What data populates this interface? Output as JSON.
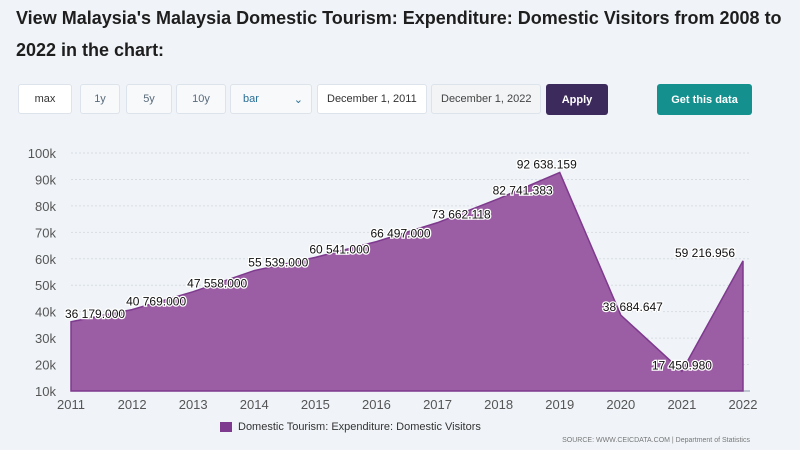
{
  "title": "View Malaysia's Malaysia Domestic Tourism: Expenditure: Domestic Visitors from 2008 to 2022 in the chart:",
  "controls": {
    "ranges": [
      "max",
      "1y",
      "5y",
      "10y"
    ],
    "chart_type": "bar",
    "start_date": "December 1, 2011",
    "end_date": "December 1, 2022",
    "apply_label": "Apply",
    "get_data_label": "Get this data"
  },
  "colors": {
    "series_fill": "#9b5da3",
    "series_line": "#7e3a8e",
    "apply_bg": "#3d2a5c",
    "get_data_bg": "#14908f"
  },
  "chart_data": {
    "type": "area",
    "title": "",
    "xlabel": "",
    "ylabel": "",
    "x": [
      2011,
      2012,
      2013,
      2014,
      2015,
      2016,
      2017,
      2018,
      2019,
      2020,
      2021,
      2022
    ],
    "y_tick_labels": [
      "10k",
      "20k",
      "30k",
      "40k",
      "50k",
      "60k",
      "70k",
      "80k",
      "90k",
      "100k"
    ],
    "ylim": [
      10000,
      100000
    ],
    "series": [
      {
        "name": "Domestic Tourism: Expenditure: Domestic Visitors",
        "values": [
          36179.0,
          40769.0,
          47558.0,
          55539.0,
          60541.0,
          66497.0,
          73662.118,
          82741.383,
          92638.159,
          38684.647,
          17450.98,
          59216.956
        ],
        "labels": [
          "36 179.000",
          "40 769.000",
          "47 558.000",
          "55 539.000",
          "60 541.000",
          "66 497.000",
          "73 662.118",
          "82 741.383",
          "92 638.159",
          "38 684.647",
          "17 450.980",
          "59 216.956"
        ]
      }
    ],
    "legend": "bottom-center",
    "grid": true
  },
  "source": "SOURCE: WWW.CEICDATA.COM | Department of Statistics"
}
